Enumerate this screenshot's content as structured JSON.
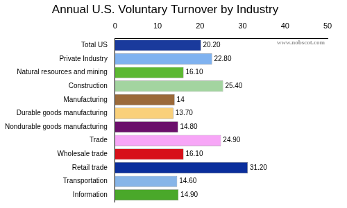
{
  "chart_data": {
    "type": "bar",
    "orientation": "horizontal",
    "title": "Annual U.S. Voluntary Turnover by Industry",
    "annotations": [
      "www.nobscot.com"
    ],
    "categories": [
      "Total US",
      "Private Industry",
      "Natural resources and mining",
      "Construction",
      "Manufacturing",
      "Durable goods manufacturing",
      "Nondurable goods manufacturing",
      "Trade",
      "Wholesale trade",
      "Retail trade",
      "Transportation",
      "Information"
    ],
    "values": [
      20.2,
      22.8,
      16.1,
      25.4,
      14,
      13.7,
      14.8,
      24.9,
      16.1,
      31.2,
      14.6,
      14.9
    ],
    "value_labels": [
      "20.20",
      "22.80",
      "16.10",
      "25.40",
      "14",
      "13.70",
      "14.80",
      "24.90",
      "16.10",
      "31.20",
      "14.60",
      "14.90"
    ],
    "colors": [
      "#1a3a9c",
      "#7fb2f0",
      "#5cb832",
      "#a3d4a0",
      "#9b6a3a",
      "#f9d07a",
      "#6b0f6b",
      "#f7a6f7",
      "#d7101a",
      "#0a2e9c",
      "#87b5e8",
      "#4aa82a"
    ],
    "xlim": [
      0,
      50
    ],
    "xticks": [
      0,
      10,
      20,
      30,
      40,
      50
    ],
    "grid": false,
    "data_labels": true
  }
}
